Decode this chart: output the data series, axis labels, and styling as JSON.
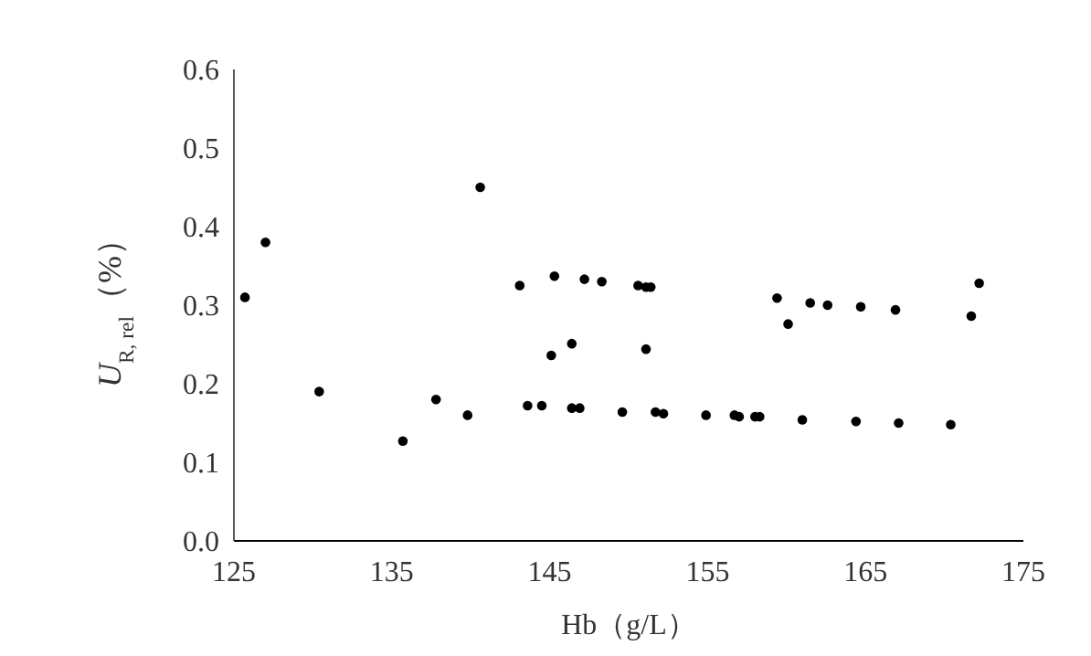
{
  "chart_data": {
    "type": "scatter",
    "xlabel": "Hb（g/L）",
    "ylabel": "U$_{R, rel}$（%）",
    "x": [
      125.7,
      127.0,
      130.4,
      135.7,
      137.8,
      139.8,
      140.6,
      143.1,
      145.3,
      147.2,
      148.3,
      150.6,
      151.1,
      151.4,
      145.1,
      146.4,
      151.1,
      143.6,
      144.5,
      146.4,
      146.9,
      149.6,
      151.7,
      152.2,
      154.9,
      156.7,
      157.0,
      158.0,
      158.3,
      161.0,
      164.4,
      167.1,
      170.4,
      159.4,
      160.1,
      161.5,
      162.6,
      164.7,
      166.9,
      171.7,
      172.2
    ],
    "series": [
      {
        "color": "#000000",
        "values": [
          0.31,
          0.38,
          0.19,
          0.127,
          0.18,
          0.16,
          0.45,
          0.325,
          0.337,
          0.333,
          0.33,
          0.325,
          0.323,
          0.323,
          0.236,
          0.251,
          0.244,
          0.172,
          0.172,
          0.169,
          0.169,
          0.164,
          0.164,
          0.162,
          0.16,
          0.16,
          0.158,
          0.158,
          0.158,
          0.154,
          0.152,
          0.15,
          0.148,
          0.309,
          0.276,
          0.303,
          0.3,
          0.298,
          0.294,
          0.286,
          0.328
        ]
      }
    ],
    "xlim": [
      125,
      175
    ],
    "xticks": [
      125,
      135,
      145,
      155,
      165,
      175
    ],
    "ylim": [
      0,
      0.6
    ],
    "yticks": [
      {
        "value": 0,
        "label": "0.0"
      },
      {
        "value": 0.1,
        "label": "0.1"
      },
      {
        "value": 0.2,
        "label": "0.2"
      },
      {
        "value": 0.3,
        "label": "0.3"
      },
      {
        "value": 0.4,
        "label": "0.4"
      },
      {
        "value": 0.5,
        "label": "0.5"
      },
      {
        "value": 0.6,
        "label": "0.6"
      }
    ],
    "grid": false,
    "marker": "circle"
  }
}
